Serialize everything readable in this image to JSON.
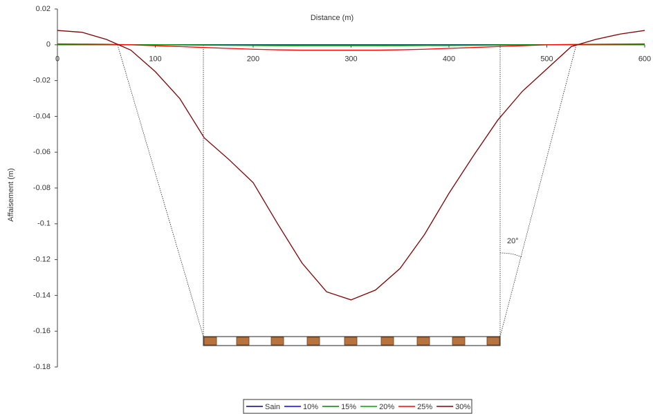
{
  "chart_data": {
    "type": "line",
    "x_label": "Distance (m)",
    "y_label": "Affaisement (m)",
    "annotation": "20°",
    "x": [
      0,
      25,
      50,
      75,
      100,
      125,
      150,
      175,
      200,
      225,
      250,
      275,
      300,
      325,
      350,
      375,
      400,
      425,
      450,
      475,
      500,
      525,
      550,
      575,
      600
    ],
    "series": [
      {
        "name": "Sain",
        "color": "#000080",
        "values": [
          0,
          0,
          0,
          0,
          0,
          0,
          0,
          0,
          0,
          0,
          0,
          0,
          0,
          0,
          0,
          0,
          0,
          0,
          0,
          0,
          0,
          0,
          0,
          0,
          0
        ]
      },
      {
        "name": "10%",
        "color": "#0000ff",
        "values": [
          0,
          0,
          0,
          0,
          0,
          0,
          0,
          0,
          0,
          0,
          0,
          0,
          0,
          0,
          0,
          0,
          0,
          0,
          0,
          0,
          0,
          0,
          0,
          0,
          0
        ]
      },
      {
        "name": "15%",
        "color": "#008000",
        "values": [
          0,
          0,
          0,
          0,
          0,
          0,
          0,
          -0.0001,
          -0.0001,
          -0.0001,
          -0.0001,
          -0.0001,
          -0.0001,
          -0.0001,
          -0.0001,
          -0.0001,
          -0.0001,
          -0.0001,
          0,
          0,
          0,
          0,
          0,
          0,
          0
        ]
      },
      {
        "name": "20%",
        "color": "#00a000",
        "values": [
          0.0001,
          0.0001,
          0.0001,
          0,
          0,
          -0.0001,
          -0.0002,
          -0.0003,
          -0.0004,
          -0.0005,
          -0.0005,
          -0.0005,
          -0.0005,
          -0.0005,
          -0.0005,
          -0.0004,
          -0.0004,
          -0.0003,
          -0.0002,
          -0.0001,
          0,
          0,
          0.0001,
          0.0001,
          0.0001
        ]
      },
      {
        "name": "25%",
        "color": "#ff0000",
        "values": [
          0.0005,
          0.0004,
          0.0003,
          0,
          -0.0005,
          -0.001,
          -0.0015,
          -0.002,
          -0.0025,
          -0.0028,
          -0.003,
          -0.003,
          -0.003,
          -0.003,
          -0.0028,
          -0.0025,
          -0.002,
          -0.0015,
          -0.001,
          -0.0005,
          0,
          0.0002,
          0.0003,
          0.0004,
          0.0005
        ]
      },
      {
        "name": "30%",
        "color": "#800000",
        "values": [
          0.008,
          0.007,
          0.003,
          -0.003,
          -0.015,
          -0.03,
          -0.052,
          -0.064,
          -0.077,
          -0.1,
          -0.122,
          -0.138,
          -0.1425,
          -0.137,
          -0.125,
          -0.106,
          -0.083,
          -0.062,
          -0.042,
          -0.026,
          -0.0135,
          -0.001,
          0.003,
          0.006,
          0.008
        ]
      }
    ],
    "xlim": [
      0,
      600
    ],
    "xticks": [
      0,
      100,
      200,
      300,
      400,
      500,
      600
    ],
    "ylim": [
      -0.18,
      0.02
    ],
    "yticks": [
      0.02,
      0,
      -0.02,
      -0.04,
      -0.06,
      -0.08,
      -0.1,
      -0.12,
      -0.14,
      -0.16,
      -0.18
    ]
  }
}
